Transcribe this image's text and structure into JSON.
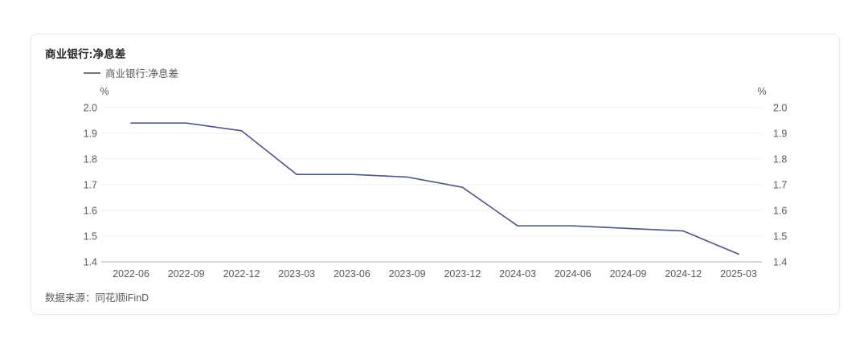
{
  "card": {
    "title": "商业银行:净息差",
    "source": "数据来源：同花顺iFinD"
  },
  "legend": {
    "label": "商业银行:净息差"
  },
  "chart_data": {
    "type": "line",
    "title": "商业银行:净息差",
    "series": [
      {
        "name": "商业银行:净息差",
        "values": [
          1.94,
          1.94,
          1.91,
          1.74,
          1.74,
          1.73,
          1.69,
          1.54,
          1.54,
          1.53,
          1.52,
          1.43
        ]
      }
    ],
    "categories": [
      "2022-06",
      "2022-09",
      "2022-12",
      "2023-03",
      "2023-06",
      "2023-09",
      "2023-12",
      "2024-03",
      "2024-06",
      "2024-09",
      "2024-12",
      "2025-03"
    ],
    "unit": "%",
    "xlabel": "",
    "ylabel": "%",
    "ylim": [
      1.4,
      2.0
    ],
    "yticks": [
      1.4,
      1.5,
      1.6,
      1.7,
      1.8,
      1.9,
      2.0
    ],
    "grid": true,
    "dual_y_axis": true,
    "legend_position": "top-left",
    "colors": {
      "line": "#4f5584",
      "grid": "#f0f0f2",
      "axis": "#a9a9ad",
      "tick": "#595959"
    }
  }
}
